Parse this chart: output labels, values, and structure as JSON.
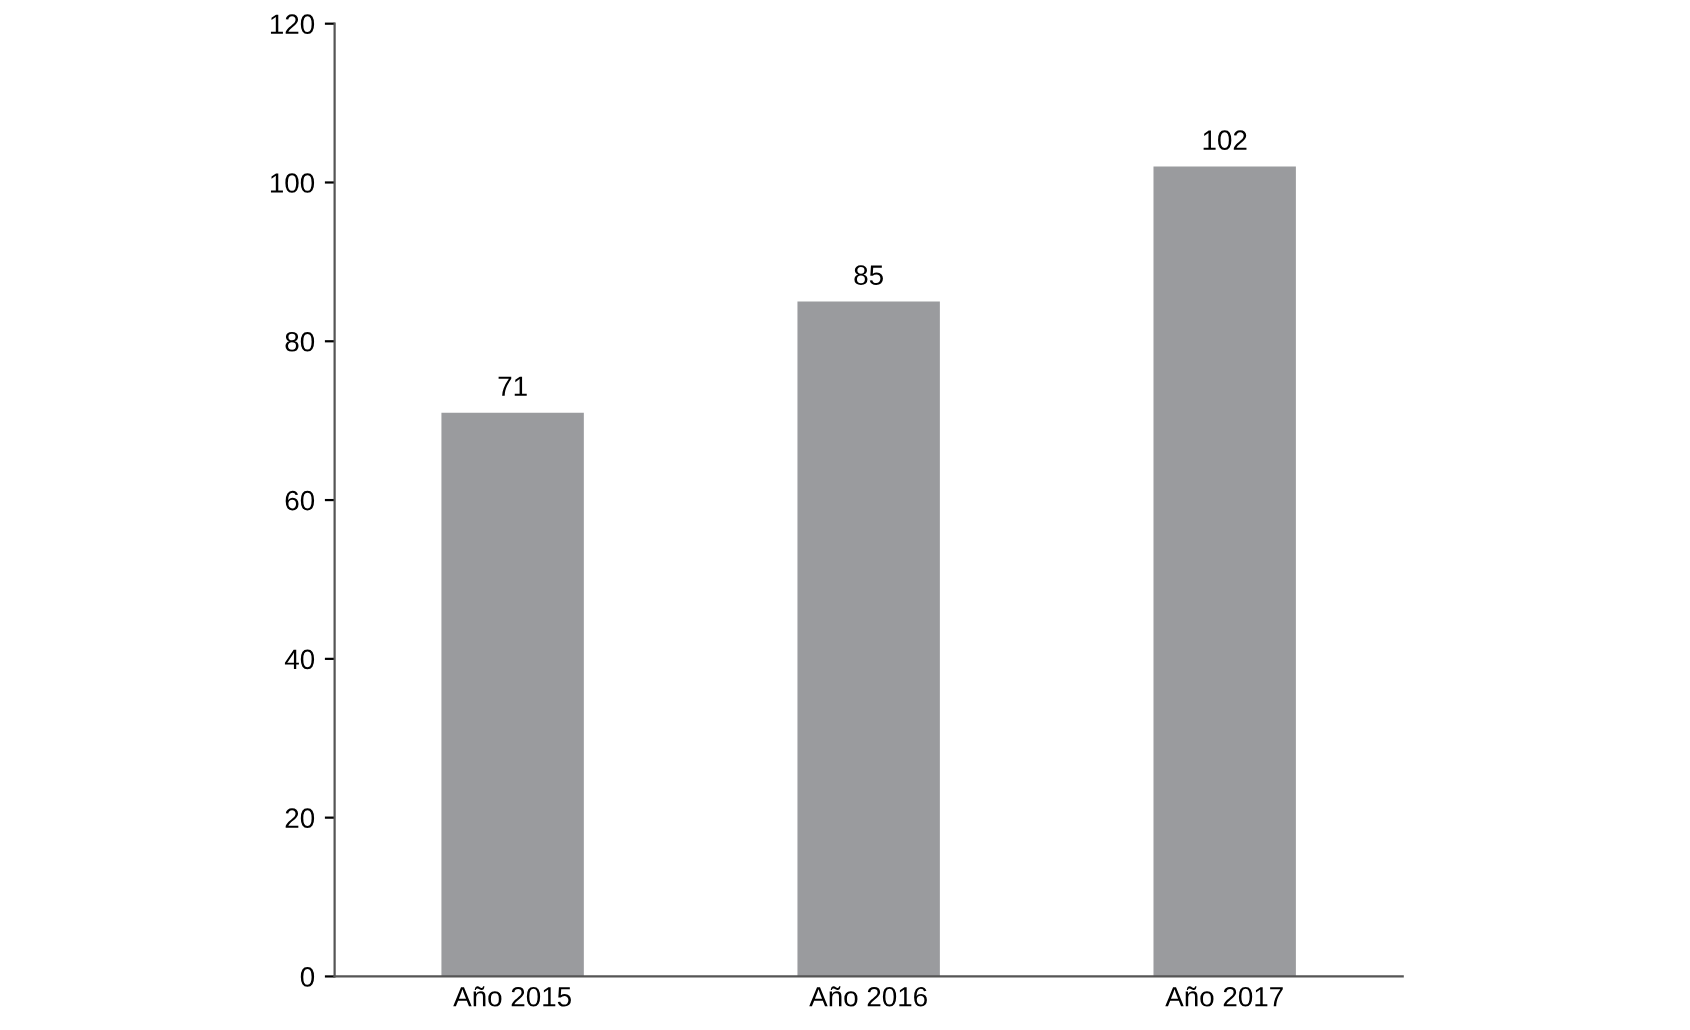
{
  "chart_data": {
    "type": "bar",
    "categories": [
      "Año 2015",
      "Año 2016",
      "Año 2017"
    ],
    "values": [
      71,
      85,
      102
    ],
    "color": "#9a9b9e",
    "ylim": [
      0,
      120
    ],
    "yticks": [
      0,
      20,
      40,
      60,
      80,
      100,
      120
    ],
    "data_labels": true,
    "grid": false,
    "legend": false
  }
}
